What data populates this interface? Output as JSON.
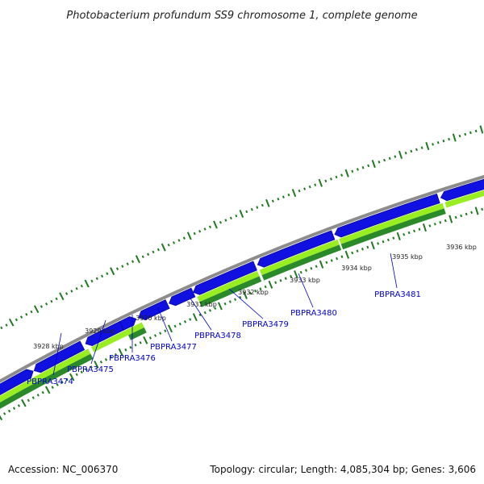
{
  "title": "Photobacterium profundum SS9 chromosome 1, complete genome",
  "footer": {
    "accession": "Accession: NC_006370",
    "summary": "Topology: circular; Length: 4,085,304 bp; Genes: 3,606"
  },
  "colors": {
    "backbone": "#8c8c8c",
    "gene_forward": "#1010e0",
    "gene_forward_edge": "#000080",
    "cds_light": "#99ee22",
    "cds_dark": "#2a8a2a",
    "tick": "#1f7a1f",
    "label": "#0000cc"
  },
  "kbp_labels": [
    "3928 kbp",
    "3929 kbp",
    "3930 kbp",
    "3931 kbp",
    "3932 kbp",
    "3933 kbp",
    "3934 kbp",
    "3935 kbp",
    "3936 kbp"
  ],
  "gene_labels": [
    "PBPRA3474",
    "PBPRA3475",
    "PBPRA3476",
    "PBPRA3477",
    "PBPRA3478",
    "PBPRA3479",
    "PBPRA3480",
    "PBPRA3481"
  ]
}
